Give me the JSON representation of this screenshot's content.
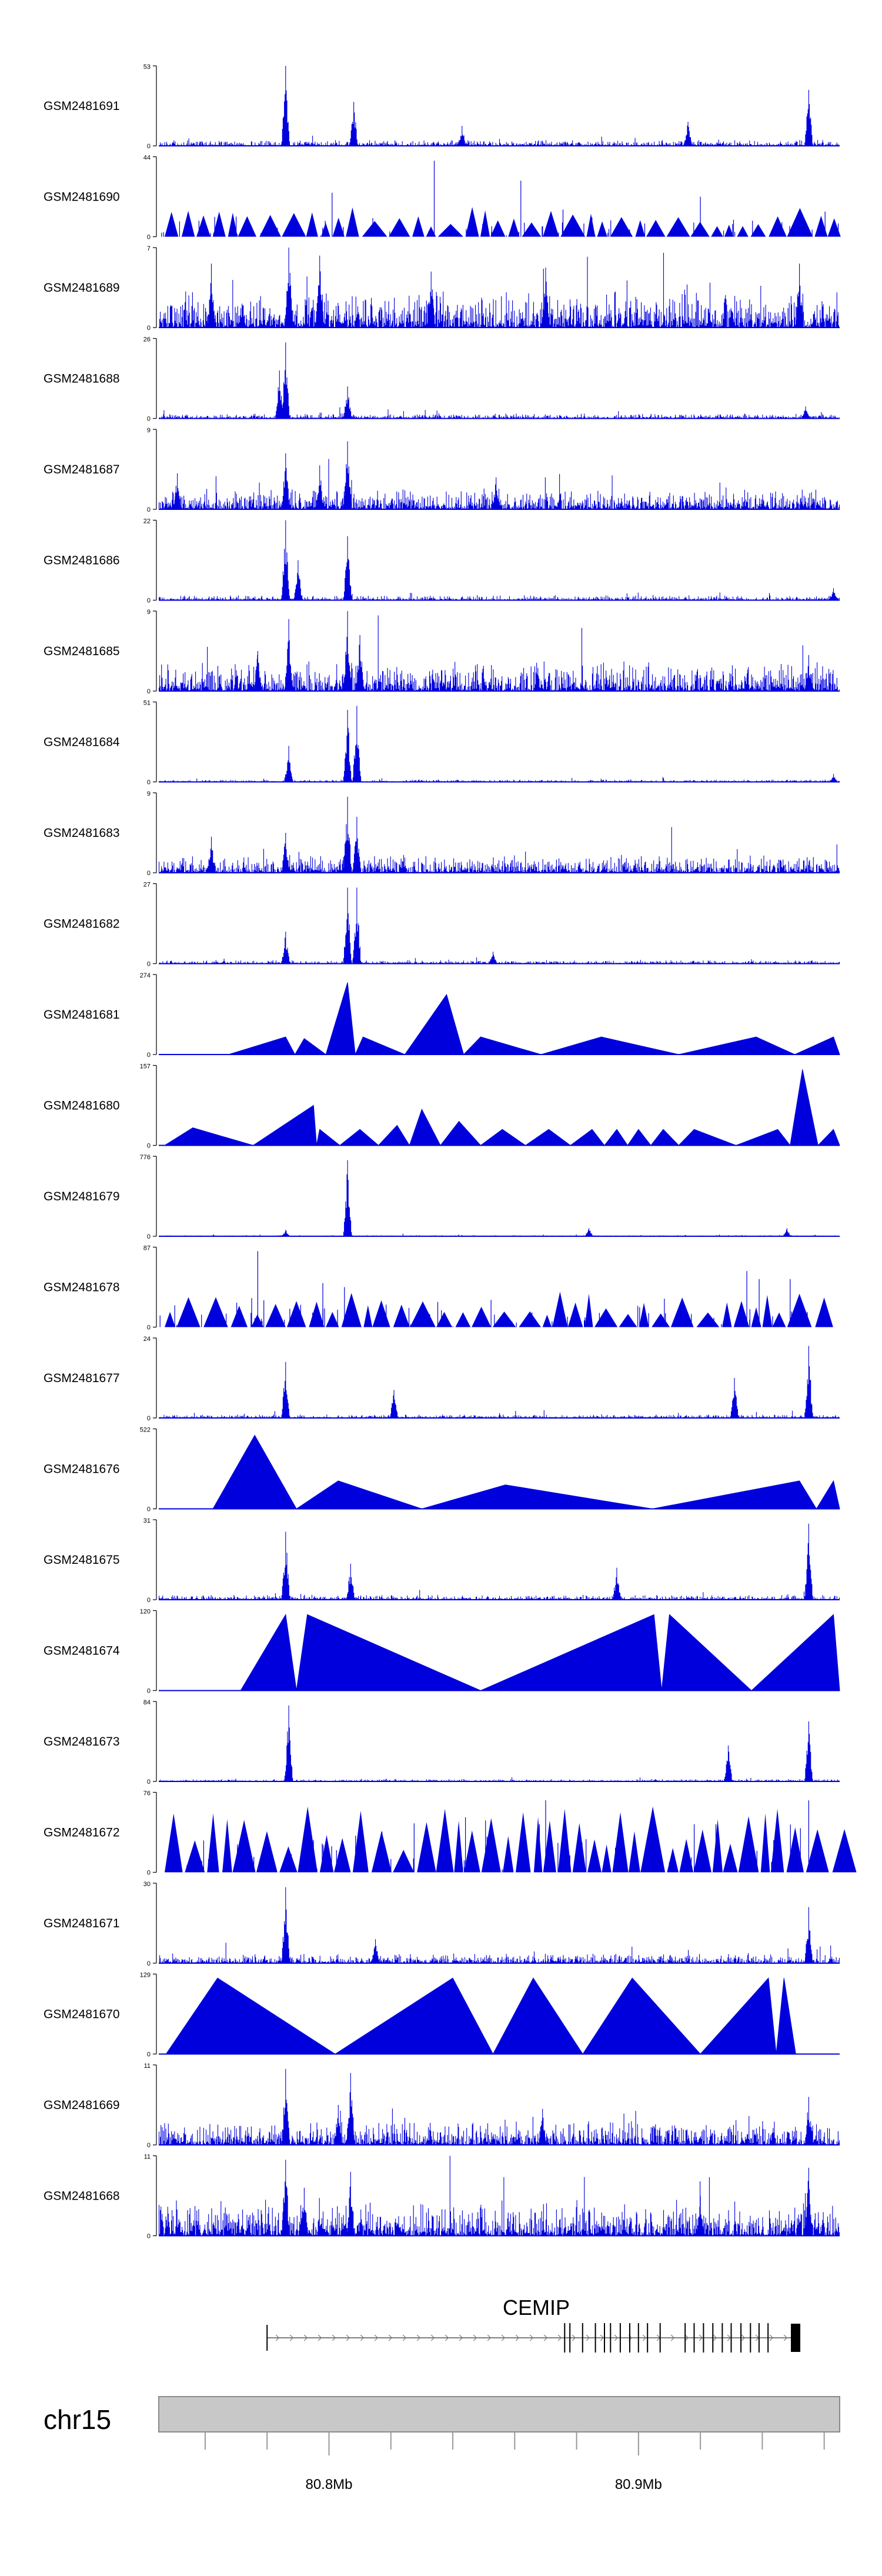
{
  "chart_data": {
    "type": "area",
    "title": "",
    "genome": {
      "chromosome": "chr15",
      "axis_ticks": [
        "80.8Mb",
        "80.9Mb"
      ],
      "xlim_mb": [
        80.745,
        80.965
      ]
    },
    "gene": {
      "name": "CEMIP",
      "strand": "+",
      "start_mb": 80.78,
      "end_mb": 80.95
    },
    "tracks": [
      {
        "sample": "GSM2481691",
        "ymax": "53",
        "style": "dense",
        "peaks": [
          [
            80.786,
            1.0
          ],
          [
            80.808,
            0.55
          ],
          [
            80.955,
            0.7
          ],
          [
            80.843,
            0.25
          ],
          [
            80.916,
            0.3
          ]
        ],
        "gaps": [],
        "avg": 0.05
      },
      {
        "sample": "GSM2481690",
        "ymax": "44",
        "style": "sparse",
        "peaks": [
          [
            80.834,
            0.95
          ],
          [
            80.862,
            0.7
          ],
          [
            80.801,
            0.55
          ],
          [
            80.92,
            0.5
          ]
        ],
        "gaps": [],
        "avg": 0.25
      },
      {
        "sample": "GSM2481689",
        "ymax": "7",
        "style": "dense",
        "peaks": [
          [
            80.787,
            1.0
          ],
          [
            80.797,
            0.9
          ],
          [
            80.762,
            0.8
          ],
          [
            80.952,
            0.8
          ],
          [
            80.87,
            0.75
          ],
          [
            80.833,
            0.7
          ]
        ],
        "gaps": [],
        "avg": 0.3
      },
      {
        "sample": "GSM2481688",
        "ymax": "26",
        "style": "dense",
        "peaks": [
          [
            80.786,
            0.95
          ],
          [
            80.784,
            0.6
          ],
          [
            80.806,
            0.4
          ],
          [
            80.954,
            0.15
          ]
        ],
        "gaps": [],
        "avg": 0.04
      },
      {
        "sample": "GSM2481687",
        "ymax": "9",
        "style": "dense",
        "peaks": [
          [
            80.806,
            0.85
          ],
          [
            80.786,
            0.7
          ],
          [
            80.797,
            0.55
          ],
          [
            80.751,
            0.45
          ],
          [
            80.854,
            0.4
          ]
        ],
        "gaps": [],
        "avg": 0.18
      },
      {
        "sample": "GSM2481686",
        "ymax": "22",
        "style": "dense",
        "peaks": [
          [
            80.786,
            1.0
          ],
          [
            80.806,
            0.8
          ],
          [
            80.79,
            0.5
          ],
          [
            80.963,
            0.15
          ]
        ],
        "gaps": [],
        "avg": 0.04
      },
      {
        "sample": "GSM2481685",
        "ymax": "9",
        "style": "dense",
        "peaks": [
          [
            80.806,
            1.0
          ],
          [
            80.787,
            0.9
          ],
          [
            80.81,
            0.7
          ],
          [
            80.777,
            0.5
          ],
          [
            80.955,
            0.45
          ]
        ],
        "gaps": [],
        "avg": 0.25
      },
      {
        "sample": "GSM2481684",
        "ymax": "51",
        "style": "dense",
        "peaks": [
          [
            80.806,
            0.9
          ],
          [
            80.809,
            0.95
          ],
          [
            80.787,
            0.45
          ],
          [
            80.963,
            0.1
          ]
        ],
        "gaps": [],
        "avg": 0.02
      },
      {
        "sample": "GSM2481683",
        "ymax": "9",
        "style": "dense",
        "peaks": [
          [
            80.806,
            0.95
          ],
          [
            80.809,
            0.7
          ],
          [
            80.786,
            0.5
          ],
          [
            80.762,
            0.45
          ]
        ],
        "gaps": [],
        "avg": 0.15
      },
      {
        "sample": "GSM2481682",
        "ymax": "27",
        "style": "dense",
        "peaks": [
          [
            80.806,
            0.95
          ],
          [
            80.809,
            0.95
          ],
          [
            80.786,
            0.4
          ],
          [
            80.853,
            0.15
          ]
        ],
        "gaps": [],
        "avg": 0.03
      },
      {
        "sample": "GSM2481681",
        "ymax": "274",
        "style": "triangles",
        "peaks": [
          [
            80.786,
            0.22
          ],
          [
            80.792,
            0.2
          ],
          [
            80.806,
            0.9
          ],
          [
            80.811,
            0.22
          ],
          [
            80.838,
            0.75
          ],
          [
            80.849,
            0.22
          ],
          [
            80.888,
            0.22
          ],
          [
            80.938,
            0.22
          ],
          [
            80.963,
            0.22
          ]
        ],
        "gaps": [],
        "avg": 0.0
      },
      {
        "sample": "GSM2481680",
        "ymax": "157",
        "style": "triangles",
        "peaks": [
          [
            80.756,
            0.22
          ],
          [
            80.795,
            0.5
          ],
          [
            80.797,
            0.2
          ],
          [
            80.81,
            0.2
          ],
          [
            80.822,
            0.25
          ],
          [
            80.83,
            0.45
          ],
          [
            80.842,
            0.3
          ],
          [
            80.856,
            0.2
          ],
          [
            80.871,
            0.2
          ],
          [
            80.885,
            0.2
          ],
          [
            80.893,
            0.2
          ],
          [
            80.9,
            0.2
          ],
          [
            80.908,
            0.2
          ],
          [
            80.918,
            0.2
          ],
          [
            80.945,
            0.2
          ],
          [
            80.953,
            0.95
          ],
          [
            80.963,
            0.2
          ]
        ],
        "gaps": [],
        "avg": 0.0
      },
      {
        "sample": "GSM2481679",
        "ymax": "776",
        "style": "dense",
        "peaks": [
          [
            80.806,
            0.95
          ],
          [
            80.884,
            0.1
          ],
          [
            80.948,
            0.1
          ],
          [
            80.786,
            0.08
          ]
        ],
        "gaps": [],
        "avg": 0.01
      },
      {
        "sample": "GSM2481678",
        "ymax": "87",
        "style": "sparse",
        "peaks": [
          [
            80.777,
            0.95
          ],
          [
            80.798,
            0.55
          ],
          [
            80.805,
            0.5
          ],
          [
            80.935,
            0.7
          ],
          [
            80.939,
            0.6
          ],
          [
            80.949,
            0.6
          ]
        ],
        "gaps": [],
        "avg": 0.3
      },
      {
        "sample": "GSM2481677",
        "ymax": "24",
        "style": "dense",
        "peaks": [
          [
            80.786,
            0.7
          ],
          [
            80.955,
            0.9
          ],
          [
            80.931,
            0.5
          ],
          [
            80.821,
            0.35
          ]
        ],
        "gaps": [],
        "avg": 0.03
      },
      {
        "sample": "GSM2481676",
        "ymax": "522",
        "style": "triangles",
        "peaks": [
          [
            80.776,
            0.92
          ],
          [
            80.803,
            0.35
          ],
          [
            80.857,
            0.3
          ],
          [
            80.952,
            0.35
          ],
          [
            80.963,
            0.35
          ]
        ],
        "gaps": [],
        "avg": 0.0
      },
      {
        "sample": "GSM2481675",
        "ymax": "31",
        "style": "dense",
        "peaks": [
          [
            80.955,
            0.95
          ],
          [
            80.786,
            0.85
          ],
          [
            80.807,
            0.45
          ],
          [
            80.893,
            0.4
          ]
        ],
        "gaps": [],
        "avg": 0.04
      },
      {
        "sample": "GSM2481674",
        "ymax": "120",
        "style": "triangles",
        "peaks": [
          [
            80.786,
            0.95
          ],
          [
            80.793,
            0.95
          ],
          [
            80.905,
            0.95
          ],
          [
            80.91,
            0.95
          ],
          [
            80.963,
            0.95
          ]
        ],
        "gaps": [],
        "avg": 0.0
      },
      {
        "sample": "GSM2481673",
        "ymax": "84",
        "style": "dense",
        "peaks": [
          [
            80.787,
            0.95
          ],
          [
            80.955,
            0.75
          ],
          [
            80.929,
            0.45
          ]
        ],
        "gaps": [],
        "avg": 0.02
      },
      {
        "sample": "GSM2481672",
        "ymax": "76",
        "style": "sparse",
        "peaks": [
          [
            80.868,
            0.6
          ],
          [
            80.918,
            0.6
          ],
          [
            80.925,
            0.6
          ],
          [
            80.955,
            0.9
          ],
          [
            80.87,
            0.9
          ]
        ],
        "gaps": [],
        "avg": 0.55
      },
      {
        "sample": "GSM2481671",
        "ymax": "30",
        "style": "dense",
        "peaks": [
          [
            80.786,
            0.95
          ],
          [
            80.955,
            0.7
          ],
          [
            80.815,
            0.3
          ]
        ],
        "gaps": [],
        "avg": 0.08
      },
      {
        "sample": "GSM2481670",
        "ymax": "129",
        "style": "triangles",
        "peaks": [
          [
            80.764,
            0.95
          ],
          [
            80.84,
            0.95
          ],
          [
            80.866,
            0.95
          ],
          [
            80.898,
            0.95
          ],
          [
            80.942,
            0.95
          ],
          [
            80.947,
            0.95
          ]
        ],
        "gaps": [],
        "avg": 0.0
      },
      {
        "sample": "GSM2481669",
        "ymax": "11",
        "style": "dense",
        "peaks": [
          [
            80.786,
            0.95
          ],
          [
            80.807,
            0.9
          ],
          [
            80.803,
            0.5
          ],
          [
            80.955,
            0.6
          ],
          [
            80.869,
            0.45
          ]
        ],
        "gaps": [],
        "avg": 0.2
      },
      {
        "sample": "GSM2481668",
        "ymax": "11",
        "style": "dense",
        "peaks": [
          [
            80.786,
            0.95
          ],
          [
            80.807,
            0.8
          ],
          [
            80.955,
            0.85
          ],
          [
            80.792,
            0.6
          ],
          [
            80.92,
            0.5
          ]
        ],
        "gaps": [],
        "avg": 0.3
      }
    ]
  },
  "colors": {
    "signal": "#0000dd",
    "ideogram_fill": "#c8c8c8",
    "ideogram_stroke": "#8a8a8a"
  }
}
